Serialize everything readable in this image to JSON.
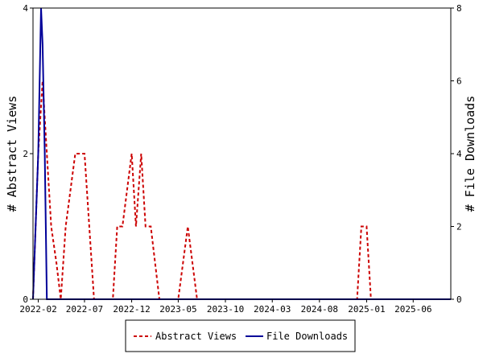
{
  "chart_data": {
    "type": "line",
    "title": "",
    "left_axis": {
      "label": "# Abstract Views",
      "min": 0,
      "max": 4,
      "ticks": [
        0,
        2,
        4
      ]
    },
    "right_axis": {
      "label": "# File Downloads",
      "min": 0,
      "max": 8,
      "ticks": [
        0,
        2,
        4,
        6,
        8
      ]
    },
    "x_axis": {
      "label": "",
      "start": "2022-01-15",
      "end": "2025-10-01",
      "tick_labels": [
        "2022-02",
        "2022-07",
        "2022-12",
        "2023-05",
        "2023-10",
        "2024-03",
        "2024-08",
        "2025-01",
        "2025-06"
      ]
    },
    "legend_position": "bottom-center",
    "grid": false,
    "series": [
      {
        "name": "Abstract Views",
        "axis": "left",
        "color": "#cc0000",
        "style": "dashed",
        "x": [
          "2022-01-15",
          "2022-02-01",
          "2022-02-15",
          "2022-03-01",
          "2022-03-15",
          "2022-04-01",
          "2022-04-15",
          "2022-05-01",
          "2022-06-01",
          "2022-07-01",
          "2022-08-01",
          "2022-09-01",
          "2022-10-01",
          "2022-10-15",
          "2022-11-01",
          "2022-12-01",
          "2022-12-15",
          "2023-01-01",
          "2023-01-15",
          "2023-02-01",
          "2023-03-01",
          "2023-04-01",
          "2023-05-01",
          "2023-06-01",
          "2023-07-01",
          "2023-07-15",
          "2023-08-01",
          "2024-12-01",
          "2024-12-15",
          "2025-01-01",
          "2025-01-15",
          "2025-10-01"
        ],
        "values": [
          0,
          2,
          3,
          2,
          1,
          0.5,
          0,
          1,
          2,
          2,
          0,
          0,
          0,
          1,
          1,
          2,
          1,
          2,
          1,
          1,
          0,
          0,
          0,
          1,
          0,
          0,
          0,
          0,
          1,
          1,
          0,
          0
        ]
      },
      {
        "name": "File Downloads",
        "axis": "right",
        "color": "#000099",
        "style": "solid",
        "x": [
          "2022-01-15",
          "2022-02-01",
          "2022-02-10",
          "2022-02-15",
          "2022-02-22",
          "2022-03-01",
          "2022-03-15",
          "2025-10-01"
        ],
        "values": [
          0,
          4,
          8,
          7,
          4,
          0,
          0,
          0
        ]
      }
    ]
  }
}
